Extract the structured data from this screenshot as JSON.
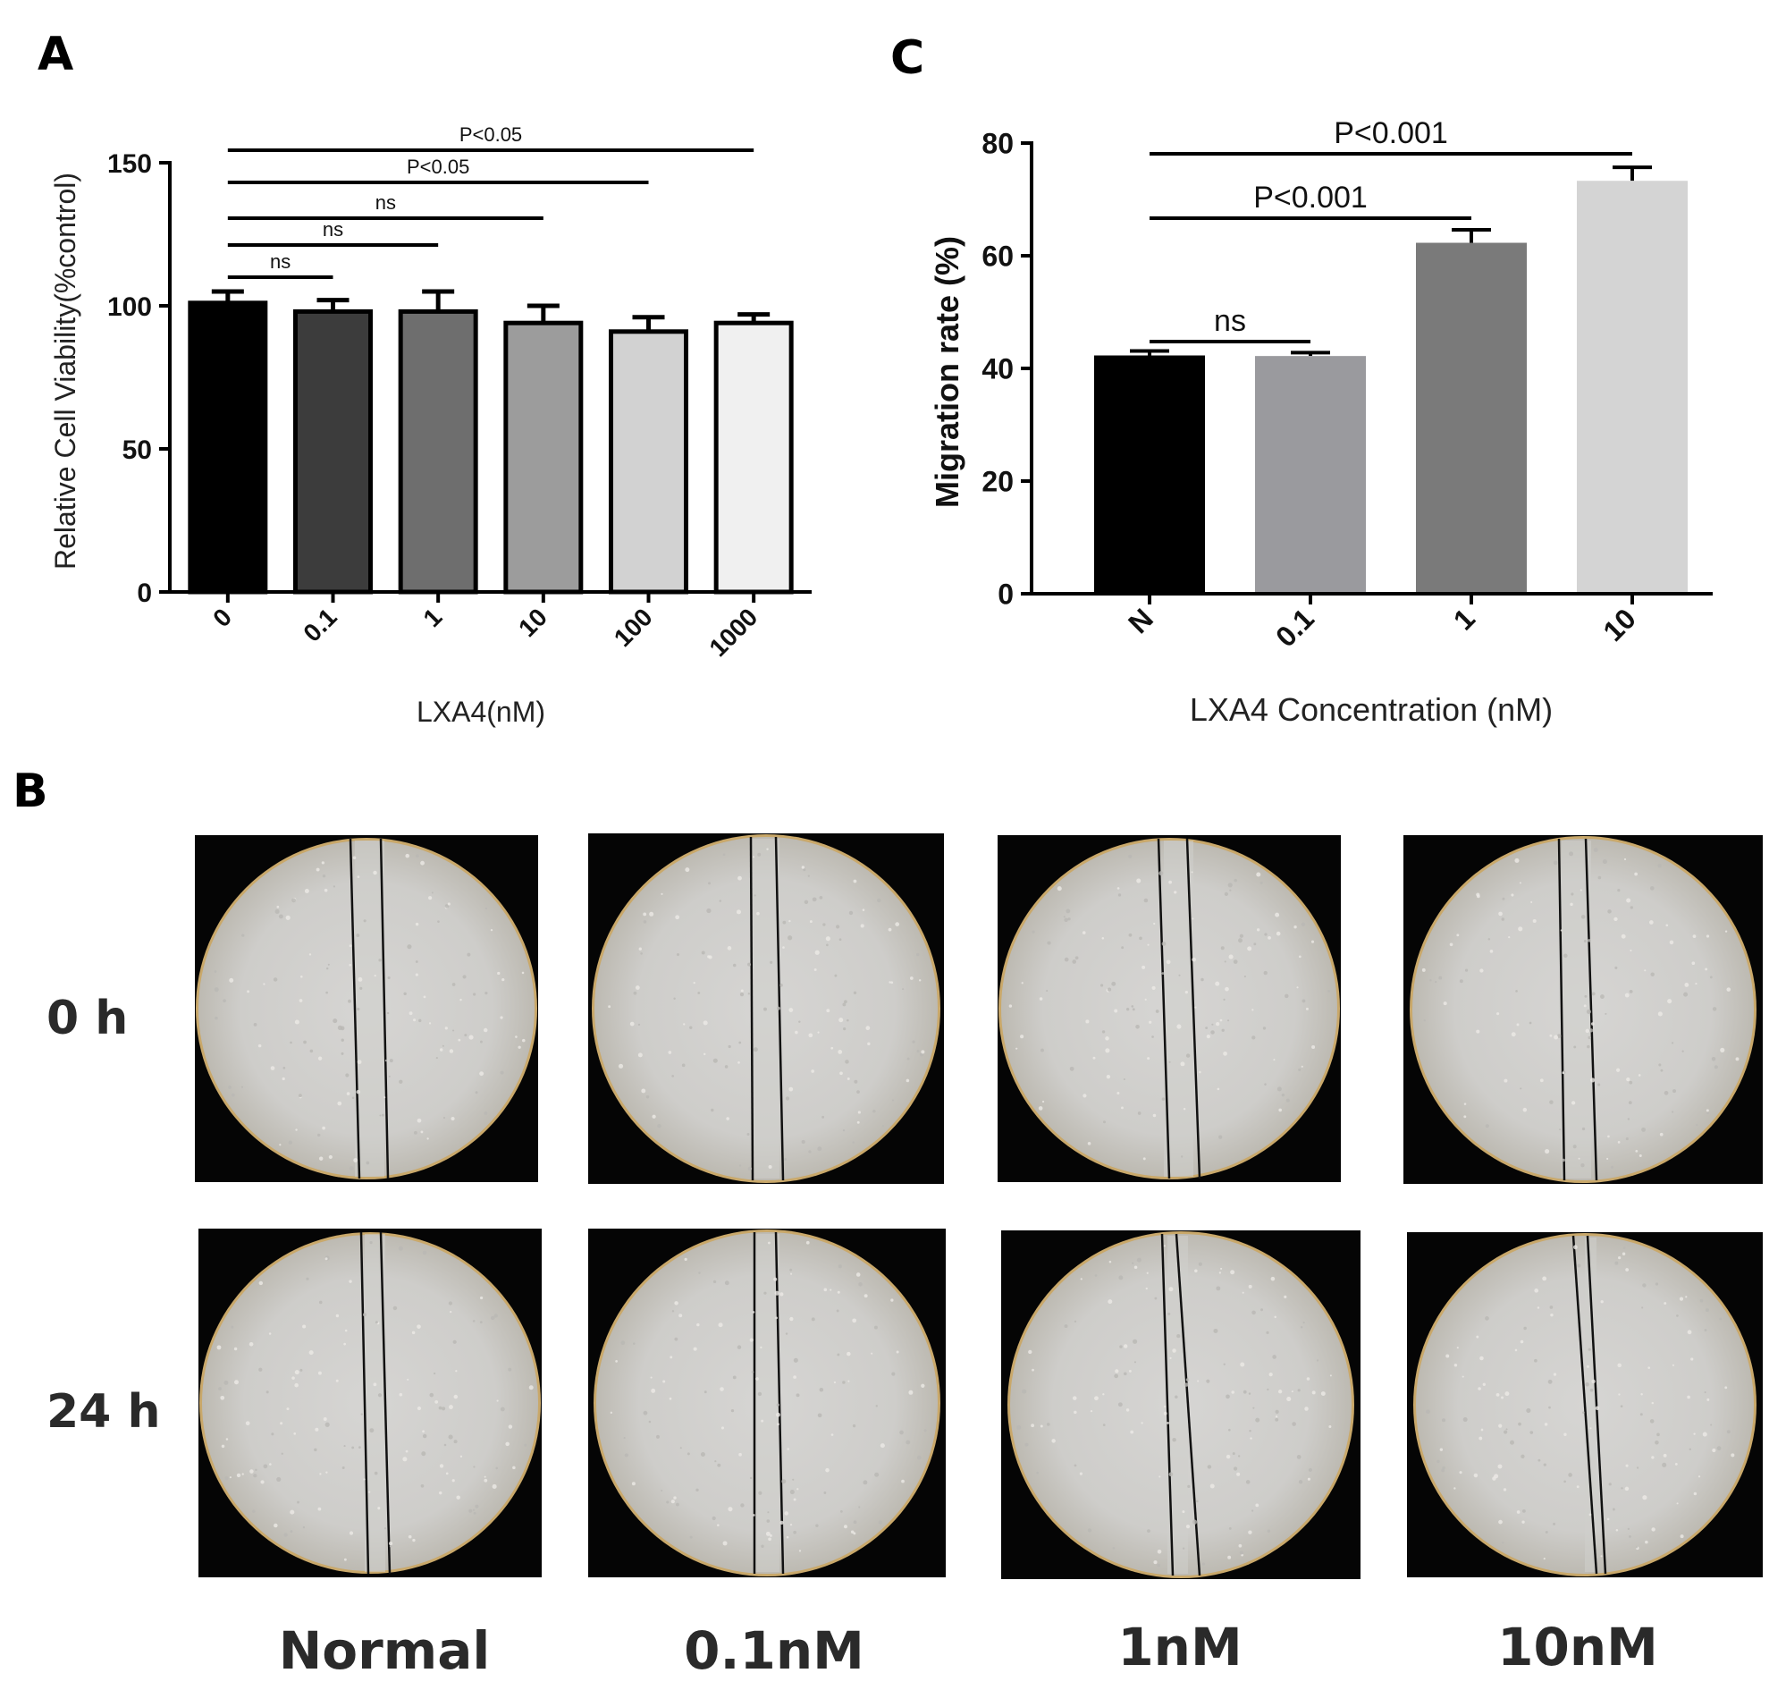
{
  "panels": {
    "A": {
      "letter": "A",
      "chart_data": {
        "type": "bar",
        "categories": [
          "0",
          "0.1",
          "1",
          "10",
          "100",
          "1000"
        ],
        "values": [
          101,
          98,
          98,
          94,
          91,
          94
        ],
        "errors": [
          4,
          4,
          7,
          6,
          5,
          3
        ],
        "colors": [
          "#000000",
          "#3c3c3c",
          "#6e6e6e",
          "#9c9c9c",
          "#d2d2d2",
          "#f0f0f0"
        ],
        "xlabel": "LXA4(nM)",
        "ylabel": "Relative Cell Viability(%control)",
        "ylim": [
          0,
          150
        ],
        "yticks": [
          0,
          50,
          100,
          150
        ],
        "comparisons": [
          {
            "from": "0",
            "to": "0.1",
            "label": "ns"
          },
          {
            "from": "0",
            "to": "1",
            "label": "ns"
          },
          {
            "from": "0",
            "to": "10",
            "label": "ns"
          },
          {
            "from": "0",
            "to": "100",
            "label": "P<0.05"
          },
          {
            "from": "0",
            "to": "1000",
            "label": "P<0.05"
          }
        ]
      }
    },
    "C": {
      "letter": "C",
      "chart_data": {
        "type": "bar",
        "categories": [
          "N",
          "0.1",
          "1",
          "10"
        ],
        "values": [
          42.3,
          42.2,
          62.3,
          73.3
        ],
        "errors": [
          0.8,
          0.6,
          2.3,
          2.4
        ],
        "colors": [
          "#000000",
          "#9a9a9e",
          "#7a7a7a",
          "#d4d4d4"
        ],
        "xlabel": "LXA4 Concentration (nM)",
        "ylabel": "Migration rate (%)",
        "ylim": [
          0,
          80
        ],
        "yticks": [
          0,
          20,
          40,
          60,
          80
        ],
        "comparisons": [
          {
            "from": "N",
            "to": "0.1",
            "label": "ns"
          },
          {
            "from": "N",
            "to": "1",
            "label": "P<0.001"
          },
          {
            "from": "N",
            "to": "10",
            "label": "P<0.001"
          }
        ]
      }
    },
    "B": {
      "letter": "B",
      "rows": [
        "0 h",
        "24 h"
      ],
      "columns": [
        "Normal",
        "0.1nM",
        "1nM",
        "10nM"
      ]
    }
  }
}
